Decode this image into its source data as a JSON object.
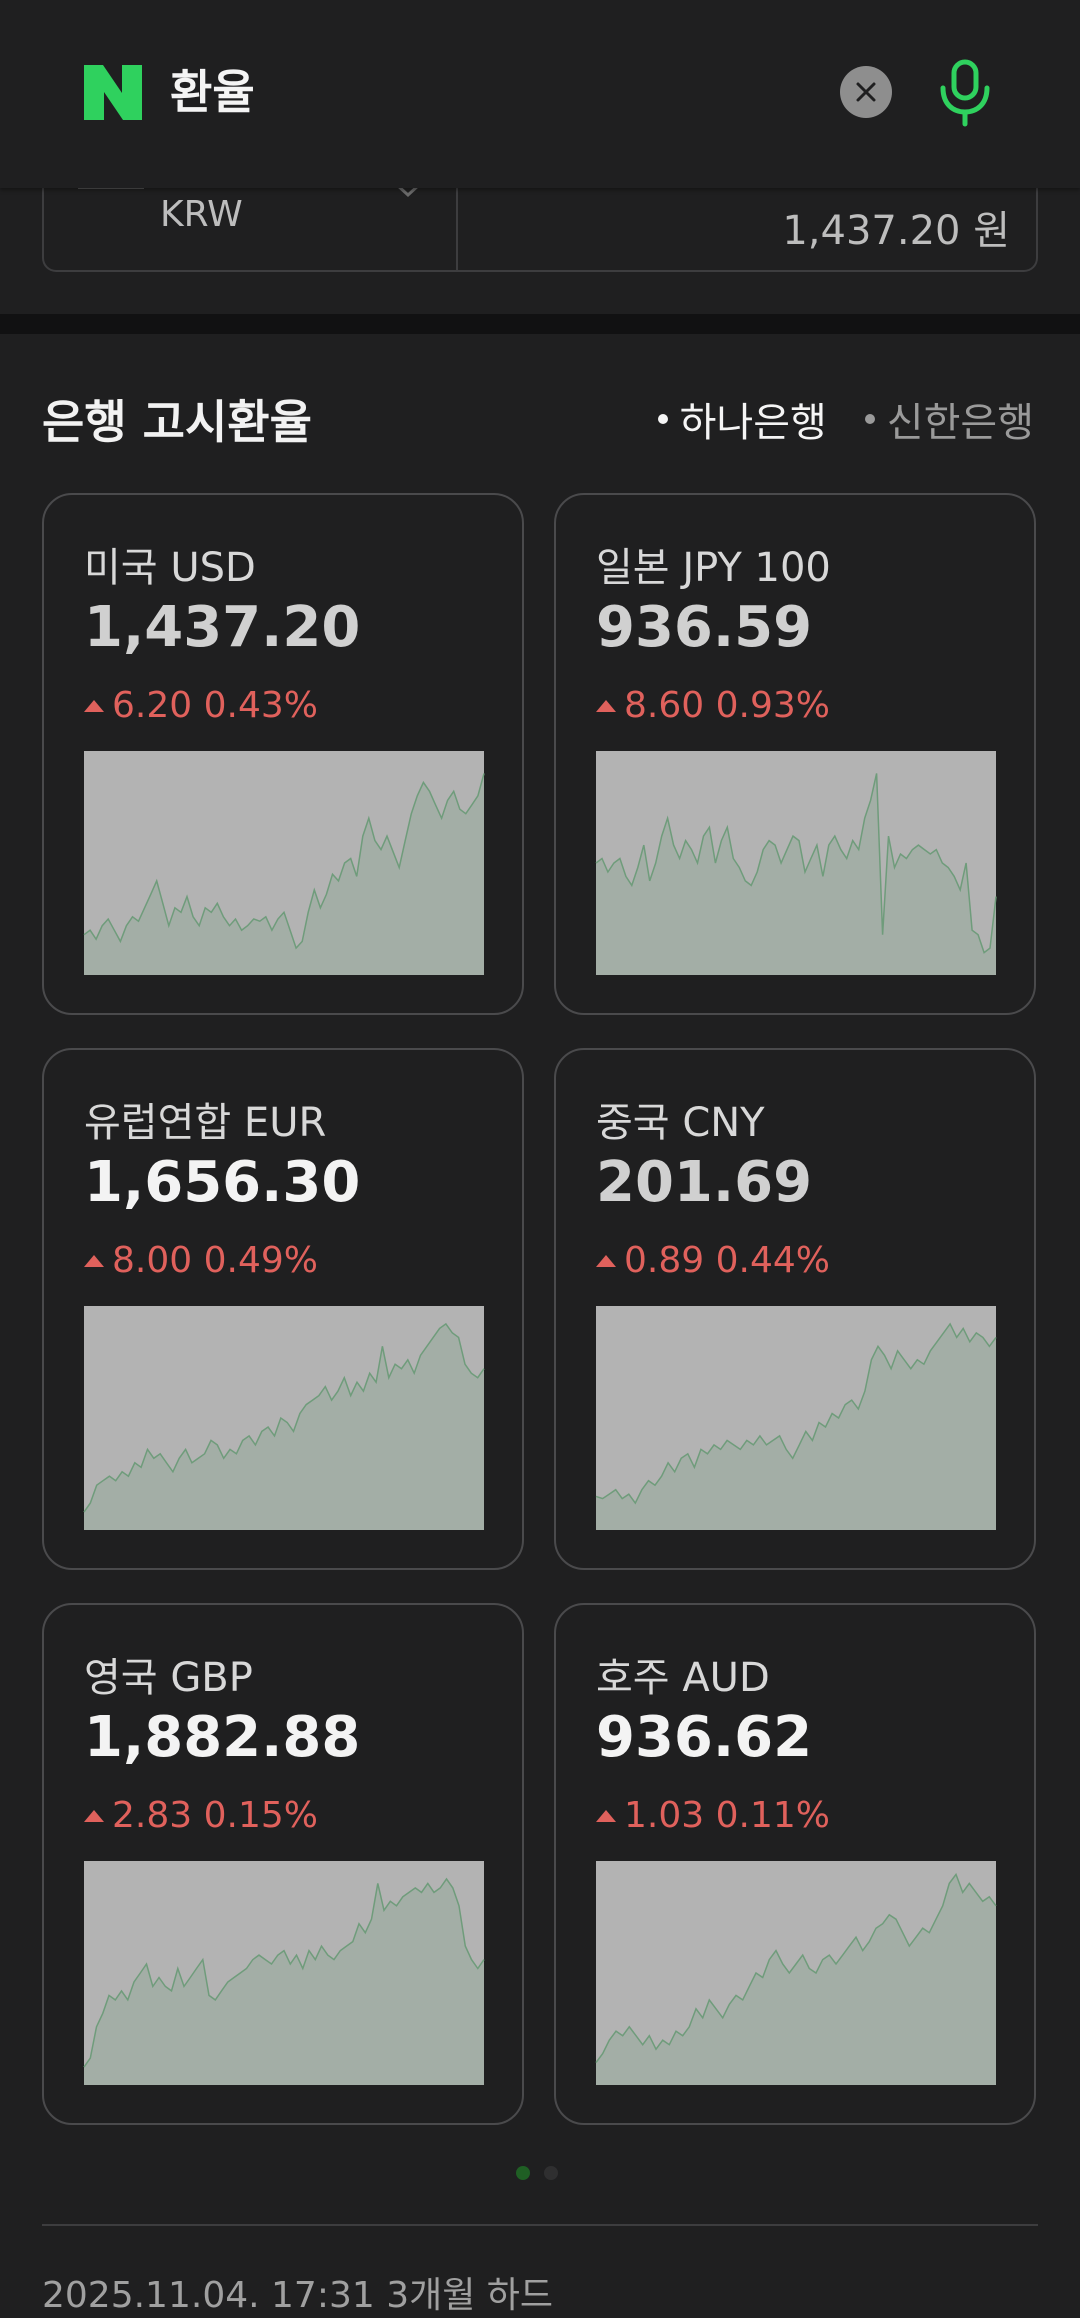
{
  "header": {
    "query": "환율",
    "logo_letter": "N",
    "logo_color": "#2fd15e",
    "mic_color": "#2fd15e"
  },
  "converter": {
    "currency_code": "KRW",
    "converted_value": "1,437.20 원"
  },
  "section": {
    "title": "은행 고시환율",
    "banks": [
      {
        "label": "하나은행",
        "active": true
      },
      {
        "label": "신한은행",
        "active": false
      }
    ]
  },
  "cards": [
    {
      "name": "미국 USD",
      "rate": "1,437.20",
      "change": "6.20 0.43%",
      "dim": true,
      "trend": [
        0.18,
        0.2,
        0.16,
        0.22,
        0.25,
        0.2,
        0.15,
        0.22,
        0.26,
        0.24,
        0.3,
        0.36,
        0.42,
        0.32,
        0.22,
        0.3,
        0.28,
        0.35,
        0.26,
        0.22,
        0.3,
        0.28,
        0.32,
        0.26,
        0.22,
        0.25,
        0.2,
        0.22,
        0.25,
        0.24,
        0.26,
        0.2,
        0.25,
        0.28,
        0.2,
        0.12,
        0.15,
        0.28,
        0.38,
        0.3,
        0.36,
        0.45,
        0.42,
        0.5,
        0.52,
        0.44,
        0.62,
        0.7,
        0.6,
        0.56,
        0.62,
        0.55,
        0.48,
        0.6,
        0.72,
        0.8,
        0.86,
        0.82,
        0.76,
        0.7,
        0.78,
        0.82,
        0.74,
        0.72,
        0.76,
        0.8,
        0.9
      ]
    },
    {
      "name": "일본 JPY 100",
      "rate": "936.59",
      "change": "8.60 0.93%",
      "dim": true,
      "trend": [
        0.5,
        0.52,
        0.46,
        0.5,
        0.52,
        0.44,
        0.4,
        0.48,
        0.58,
        0.42,
        0.5,
        0.62,
        0.7,
        0.58,
        0.52,
        0.6,
        0.56,
        0.5,
        0.62,
        0.66,
        0.5,
        0.6,
        0.66,
        0.52,
        0.48,
        0.42,
        0.4,
        0.46,
        0.56,
        0.6,
        0.58,
        0.5,
        0.56,
        0.62,
        0.6,
        0.46,
        0.52,
        0.58,
        0.44,
        0.58,
        0.62,
        0.56,
        0.52,
        0.6,
        0.56,
        0.7,
        0.78,
        0.9,
        0.18,
        0.62,
        0.48,
        0.54,
        0.52,
        0.56,
        0.58,
        0.56,
        0.54,
        0.56,
        0.5,
        0.48,
        0.44,
        0.38,
        0.5,
        0.2,
        0.18,
        0.1,
        0.12,
        0.35
      ]
    },
    {
      "name": "유럽연합 EUR",
      "rate": "1,656.30",
      "change": "8.00 0.49%",
      "dim": false,
      "trend": [
        0.08,
        0.12,
        0.2,
        0.22,
        0.24,
        0.22,
        0.26,
        0.24,
        0.3,
        0.28,
        0.36,
        0.32,
        0.34,
        0.3,
        0.26,
        0.32,
        0.36,
        0.3,
        0.32,
        0.34,
        0.4,
        0.38,
        0.32,
        0.36,
        0.34,
        0.4,
        0.42,
        0.38,
        0.44,
        0.46,
        0.42,
        0.5,
        0.48,
        0.44,
        0.52,
        0.56,
        0.58,
        0.6,
        0.64,
        0.58,
        0.62,
        0.68,
        0.6,
        0.66,
        0.62,
        0.7,
        0.66,
        0.82,
        0.68,
        0.74,
        0.72,
        0.76,
        0.7,
        0.78,
        0.82,
        0.86,
        0.9,
        0.92,
        0.88,
        0.86,
        0.74,
        0.7,
        0.68,
        0.72
      ]
    },
    {
      "name": "중국 CNY",
      "rate": "201.69",
      "change": "0.89 0.44%",
      "dim": true,
      "trend": [
        0.15,
        0.14,
        0.16,
        0.18,
        0.14,
        0.16,
        0.12,
        0.18,
        0.22,
        0.2,
        0.24,
        0.3,
        0.26,
        0.32,
        0.34,
        0.28,
        0.36,
        0.34,
        0.38,
        0.36,
        0.4,
        0.38,
        0.36,
        0.4,
        0.38,
        0.42,
        0.38,
        0.4,
        0.42,
        0.36,
        0.32,
        0.38,
        0.44,
        0.4,
        0.48,
        0.46,
        0.52,
        0.5,
        0.56,
        0.58,
        0.54,
        0.62,
        0.76,
        0.82,
        0.78,
        0.72,
        0.8,
        0.76,
        0.72,
        0.76,
        0.74,
        0.8,
        0.84,
        0.88,
        0.92,
        0.86,
        0.9,
        0.84,
        0.88,
        0.86,
        0.82,
        0.86
      ]
    },
    {
      "name": "영국 GBP",
      "rate": "1,882.88",
      "change": "2.83 0.15%",
      "dim": false,
      "trend": [
        0.08,
        0.12,
        0.26,
        0.32,
        0.4,
        0.38,
        0.42,
        0.38,
        0.46,
        0.5,
        0.54,
        0.44,
        0.48,
        0.44,
        0.42,
        0.52,
        0.44,
        0.48,
        0.52,
        0.56,
        0.4,
        0.38,
        0.42,
        0.46,
        0.48,
        0.5,
        0.52,
        0.56,
        0.58,
        0.56,
        0.54,
        0.58,
        0.6,
        0.54,
        0.58,
        0.52,
        0.6,
        0.56,
        0.62,
        0.58,
        0.56,
        0.6,
        0.62,
        0.64,
        0.72,
        0.68,
        0.74,
        0.9,
        0.78,
        0.82,
        0.8,
        0.84,
        0.86,
        0.88,
        0.86,
        0.9,
        0.86,
        0.88,
        0.92,
        0.88,
        0.8,
        0.62,
        0.56,
        0.52,
        0.56
      ]
    },
    {
      "name": "호주 AUD",
      "rate": "936.62",
      "change": "1.03 0.11%",
      "dim": false,
      "trend": [
        0.1,
        0.14,
        0.2,
        0.24,
        0.22,
        0.26,
        0.22,
        0.18,
        0.22,
        0.16,
        0.2,
        0.18,
        0.24,
        0.22,
        0.26,
        0.34,
        0.3,
        0.38,
        0.34,
        0.3,
        0.36,
        0.4,
        0.38,
        0.44,
        0.5,
        0.48,
        0.56,
        0.6,
        0.54,
        0.5,
        0.54,
        0.58,
        0.52,
        0.5,
        0.56,
        0.58,
        0.54,
        0.58,
        0.62,
        0.66,
        0.6,
        0.64,
        0.7,
        0.72,
        0.76,
        0.74,
        0.68,
        0.62,
        0.66,
        0.7,
        0.68,
        0.74,
        0.8,
        0.9,
        0.94,
        0.86,
        0.9,
        0.86,
        0.82,
        0.84,
        0.8
      ]
    }
  ],
  "footnote": "2025.11.04. 17:31 3개월 하드"
}
